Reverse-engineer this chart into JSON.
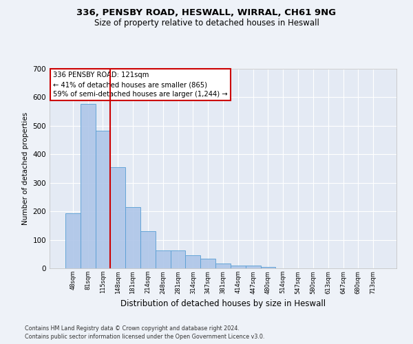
{
  "title1": "336, PENSBY ROAD, HESWALL, WIRRAL, CH61 9NG",
  "title2": "Size of property relative to detached houses in Heswall",
  "xlabel": "Distribution of detached houses by size in Heswall",
  "ylabel": "Number of detached properties",
  "footnote1": "Contains HM Land Registry data © Crown copyright and database right 2024.",
  "footnote2": "Contains public sector information licensed under the Open Government Licence v3.0.",
  "bin_labels": [
    "48sqm",
    "81sqm",
    "115sqm",
    "148sqm",
    "181sqm",
    "214sqm",
    "248sqm",
    "281sqm",
    "314sqm",
    "347sqm",
    "381sqm",
    "414sqm",
    "447sqm",
    "480sqm",
    "514sqm",
    "547sqm",
    "580sqm",
    "613sqm",
    "647sqm",
    "680sqm",
    "713sqm"
  ],
  "bar_values": [
    192,
    577,
    483,
    355,
    215,
    130,
    63,
    63,
    45,
    35,
    18,
    10,
    10,
    5,
    0,
    0,
    0,
    0,
    0,
    0,
    0
  ],
  "bar_color": "#aec6e8",
  "bar_edge_color": "#5a9fd4",
  "vline_x": 2.5,
  "vline_color": "#cc0000",
  "annotation_box_text": "336 PENSBY ROAD: 121sqm\n← 41% of detached houses are smaller (865)\n59% of semi-detached houses are larger (1,244) →",
  "ylim": [
    0,
    700
  ],
  "yticks": [
    0,
    100,
    200,
    300,
    400,
    500,
    600,
    700
  ],
  "background_color": "#eef2f8",
  "plot_bg_color": "#e4eaf4"
}
